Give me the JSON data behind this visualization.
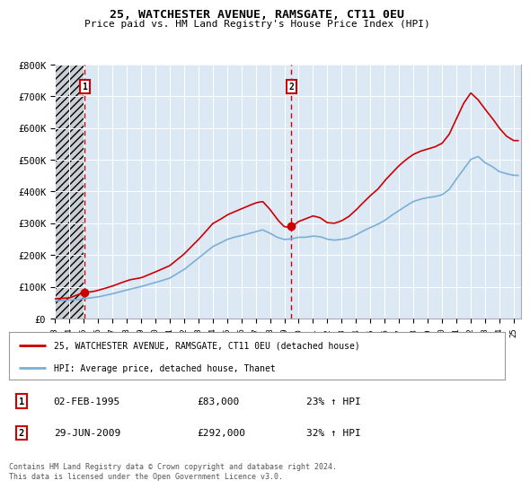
{
  "title": "25, WATCHESTER AVENUE, RAMSGATE, CT11 0EU",
  "subtitle": "Price paid vs. HM Land Registry's House Price Index (HPI)",
  "sale1_date": "02-FEB-1995",
  "sale1_price": 83000,
  "sale1_label": "1",
  "sale1_hpi_pct": "23% ↑ HPI",
  "sale2_date": "29-JUN-2009",
  "sale2_price": 292000,
  "sale2_label": "2",
  "sale2_hpi_pct": "32% ↑ HPI",
  "legend_line1": "25, WATCHESTER AVENUE, RAMSGATE, CT11 0EU (detached house)",
  "legend_line2": "HPI: Average price, detached house, Thanet",
  "footer": "Contains HM Land Registry data © Crown copyright and database right 2024.\nThis data is licensed under the Open Government Licence v3.0.",
  "chart_bg": "#dce9f5",
  "hatch_bg": "#c8c8c8",
  "red_color": "#cc0000",
  "blue_color": "#7bafd4",
  "ylim": [
    0,
    800000
  ],
  "yticks": [
    0,
    100000,
    200000,
    300000,
    400000,
    500000,
    600000,
    700000,
    800000
  ],
  "ytick_labels": [
    "£0",
    "£100K",
    "£200K",
    "£300K",
    "£400K",
    "£500K",
    "£600K",
    "£700K",
    "£800K"
  ],
  "sale1_x": 1995.08,
  "sale2_x": 2009.5,
  "xmin": 1993.0,
  "xmax": 2025.5,
  "xlabel_years": [
    1993,
    1994,
    1995,
    1996,
    1997,
    1998,
    1999,
    2000,
    2001,
    2002,
    2003,
    2004,
    2005,
    2006,
    2007,
    2008,
    2009,
    2010,
    2011,
    2012,
    2013,
    2014,
    2015,
    2016,
    2017,
    2018,
    2019,
    2020,
    2021,
    2022,
    2023,
    2024,
    2025
  ]
}
